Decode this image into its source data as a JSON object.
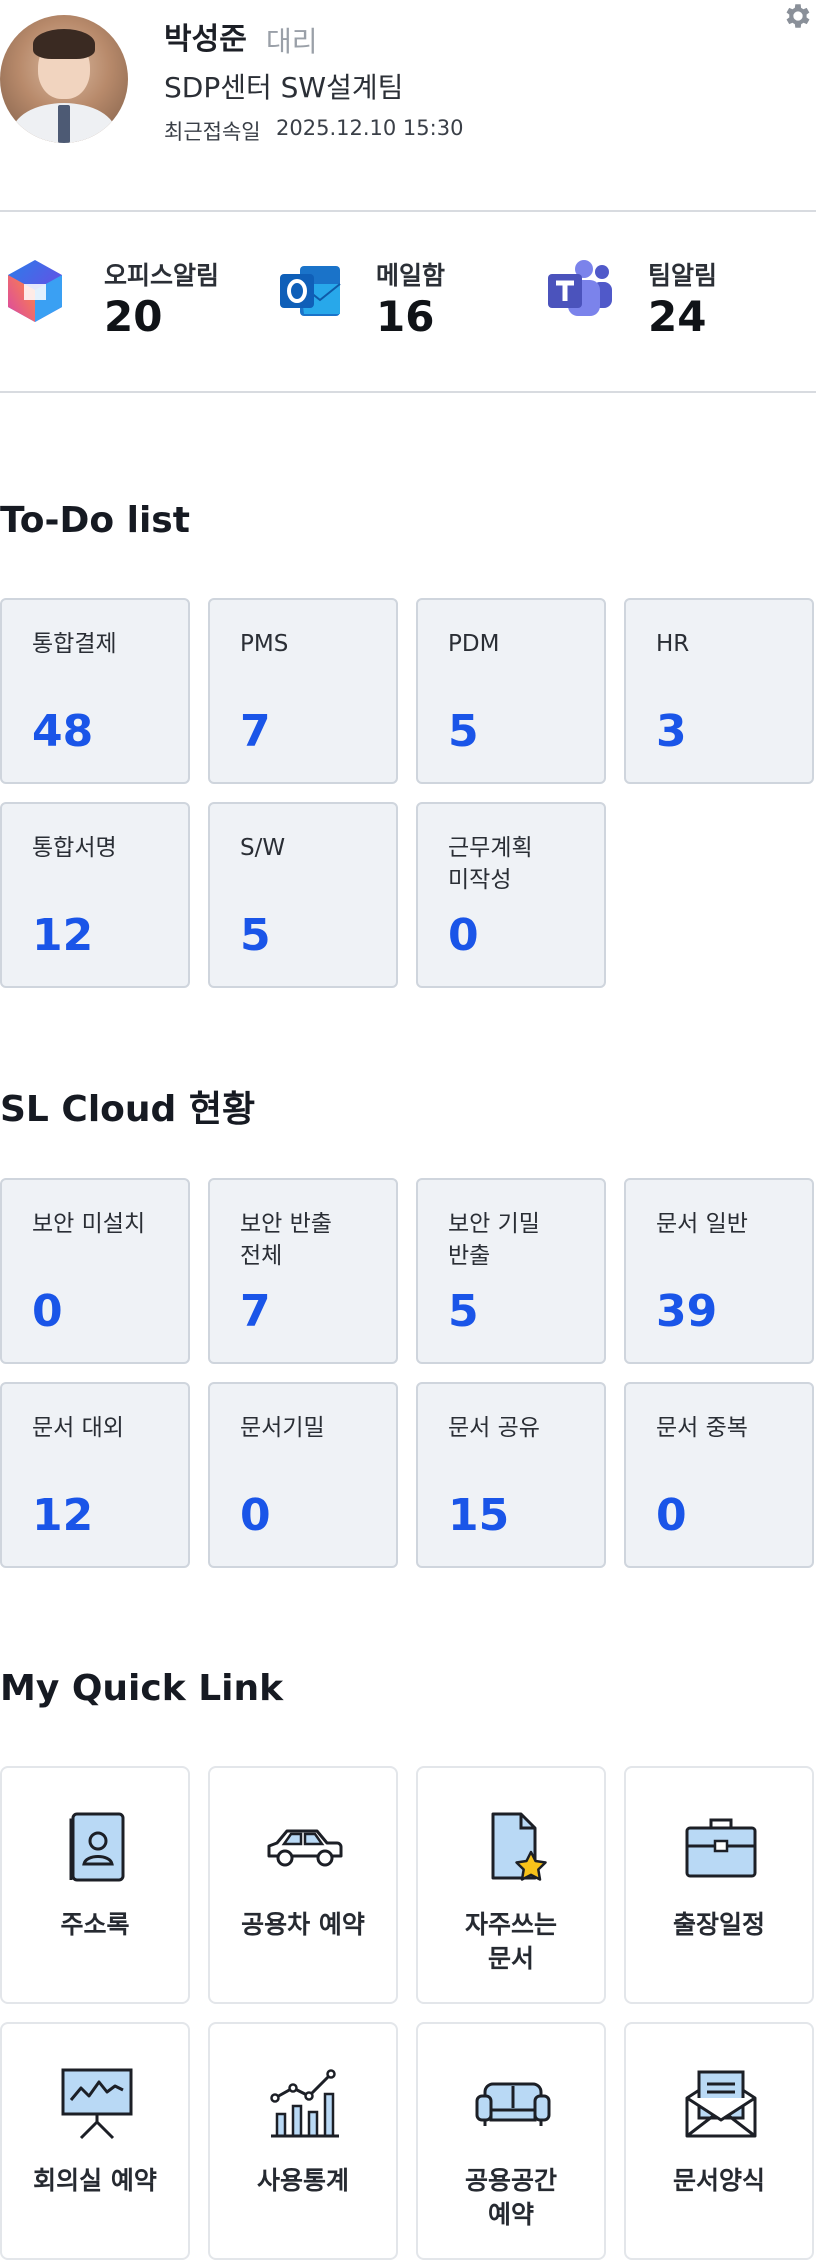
{
  "profile": {
    "name": "박성준",
    "rank": "대리",
    "team": "SDP센터 SW설계팀",
    "last_login_label": "최근접속일",
    "last_login_value": "2025.12.10  15:30"
  },
  "alerts": [
    {
      "label": "오피스알림",
      "count": "20",
      "icon": "office-icon"
    },
    {
      "label": "메일함",
      "count": "16",
      "icon": "outlook-icon"
    },
    {
      "label": "팀알림",
      "count": "24",
      "icon": "teams-icon"
    }
  ],
  "todo": {
    "title": "To-Do list",
    "items": [
      {
        "label": "통합결제",
        "value": "48"
      },
      {
        "label": "PMS",
        "value": "7"
      },
      {
        "label": "PDM",
        "value": "5"
      },
      {
        "label": "HR",
        "value": "3"
      },
      {
        "label": "통합서명",
        "value": "12"
      },
      {
        "label": "S/W",
        "value": "5"
      },
      {
        "label": "근무계획\n미작성",
        "value": "0"
      }
    ]
  },
  "slcloud": {
    "title": "SL Cloud 현황",
    "items": [
      {
        "label": "보안 미설치",
        "value": "0"
      },
      {
        "label": "보안 반출\n전체",
        "value": "7"
      },
      {
        "label": "보안 기밀\n반출",
        "value": "5"
      },
      {
        "label": "문서 일반",
        "value": "39"
      },
      {
        "label": "문서 대외",
        "value": "12"
      },
      {
        "label": "문서기밀",
        "value": "0"
      },
      {
        "label": "문서 공유",
        "value": "15"
      },
      {
        "label": "문서 중복",
        "value": "0"
      }
    ]
  },
  "quicklink": {
    "title": "My Quick Link",
    "items": [
      {
        "label": "주소록",
        "icon": "address-book-icon"
      },
      {
        "label": "공용차 예약",
        "icon": "car-icon"
      },
      {
        "label": "자주쓰는\n문서",
        "icon": "starred-document-icon"
      },
      {
        "label": "출장일정",
        "icon": "briefcase-icon"
      },
      {
        "label": "회의실 예약",
        "icon": "presentation-board-icon"
      },
      {
        "label": "사용통계",
        "icon": "statistics-chart-icon"
      },
      {
        "label": "공용공간\n예약",
        "icon": "sofa-icon"
      },
      {
        "label": "문서양식",
        "icon": "document-envelope-icon"
      }
    ]
  },
  "colors": {
    "accent": "#1a55e8",
    "card_bg": "#eff2f6",
    "icon_fill": "#b9d9f5"
  }
}
